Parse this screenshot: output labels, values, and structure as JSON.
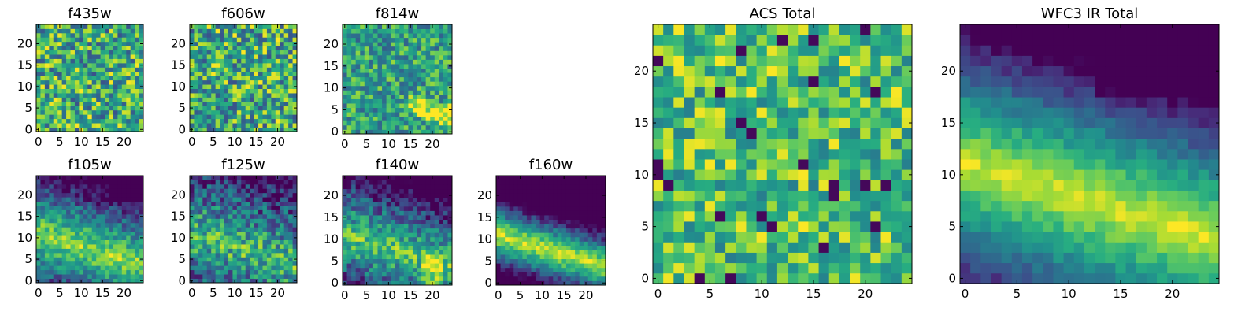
{
  "chart_data": [
    {
      "type": "heatmap",
      "title": "f435w",
      "seed": 11,
      "style": "noise",
      "x_ticks": [
        "0",
        "5",
        "10",
        "15",
        "20"
      ],
      "y_ticks": [
        "0",
        "5",
        "10",
        "15",
        "20"
      ],
      "grid_size": 25,
      "colormap": "viridis"
    },
    {
      "type": "heatmap",
      "title": "f606w",
      "seed": 23,
      "style": "noise",
      "x_ticks": [
        "0",
        "5",
        "10",
        "15",
        "20"
      ],
      "y_ticks": [
        "0",
        "5",
        "10",
        "15",
        "20"
      ],
      "grid_size": 25,
      "colormap": "viridis"
    },
    {
      "type": "heatmap",
      "title": "f814w",
      "seed": 37,
      "style": "noise_band",
      "x_ticks": [
        "0",
        "5",
        "10",
        "15",
        "20"
      ],
      "y_ticks": [
        "0",
        "5",
        "10",
        "15",
        "20"
      ],
      "grid_size": 25,
      "colormap": "viridis"
    },
    {
      "type": "heatmap",
      "title": "f105w",
      "seed": 41,
      "style": "band_soft",
      "x_ticks": [
        "0",
        "5",
        "10",
        "15",
        "20"
      ],
      "y_ticks": [
        "0",
        "5",
        "10",
        "15",
        "20"
      ],
      "grid_size": 25,
      "colormap": "viridis"
    },
    {
      "type": "heatmap",
      "title": "f125w",
      "seed": 53,
      "style": "band_noisy",
      "x_ticks": [
        "0",
        "5",
        "10",
        "15",
        "20"
      ],
      "y_ticks": [
        "0",
        "5",
        "10",
        "15",
        "20"
      ],
      "grid_size": 25,
      "colormap": "viridis"
    },
    {
      "type": "heatmap",
      "title": "f140w",
      "seed": 67,
      "style": "band_spot",
      "x_ticks": [
        "0",
        "5",
        "10",
        "15",
        "20"
      ],
      "y_ticks": [
        "0",
        "5",
        "10",
        "15",
        "20"
      ],
      "grid_size": 25,
      "colormap": "viridis"
    },
    {
      "type": "heatmap",
      "title": "f160w",
      "seed": 79,
      "style": "band_sharp",
      "x_ticks": [
        "0",
        "5",
        "10",
        "15",
        "20"
      ],
      "y_ticks": [
        "0",
        "5",
        "10",
        "15",
        "20"
      ],
      "grid_size": 25,
      "colormap": "viridis"
    },
    {
      "type": "heatmap",
      "title": "ACS Total",
      "seed": 83,
      "style": "noise_acs",
      "x_ticks": [
        "0",
        "5",
        "10",
        "15",
        "20"
      ],
      "y_ticks": [
        "0",
        "5",
        "10",
        "15",
        "20"
      ],
      "grid_size": 25,
      "colormap": "viridis"
    },
    {
      "type": "heatmap",
      "title": "WFC3 IR Total",
      "seed": 97,
      "style": "band_smooth",
      "x_ticks": [
        "0",
        "5",
        "10",
        "15",
        "20"
      ],
      "y_ticks": [
        "0",
        "5",
        "10",
        "15",
        "20"
      ],
      "grid_size": 25,
      "colormap": "viridis"
    }
  ]
}
